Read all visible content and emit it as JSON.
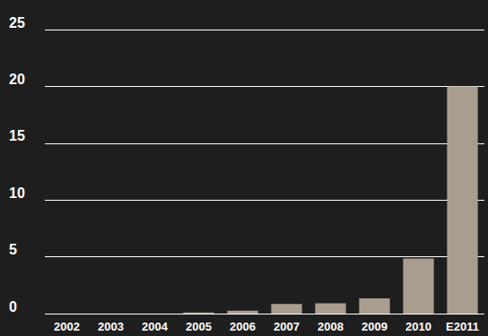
{
  "chart_data": {
    "type": "bar",
    "categories": [
      "2002",
      "2003",
      "2004",
      "2005",
      "2006",
      "2007",
      "2008",
      "2009",
      "2010",
      "E2011"
    ],
    "values": [
      0,
      0,
      0,
      0.1,
      0.25,
      0.85,
      0.9,
      1.35,
      4.85,
      20
    ],
    "color": "#a99d8f",
    "ylim": [
      0,
      25
    ],
    "yticks": [
      0,
      5,
      10,
      15,
      20,
      25
    ],
    "grid": true
  }
}
